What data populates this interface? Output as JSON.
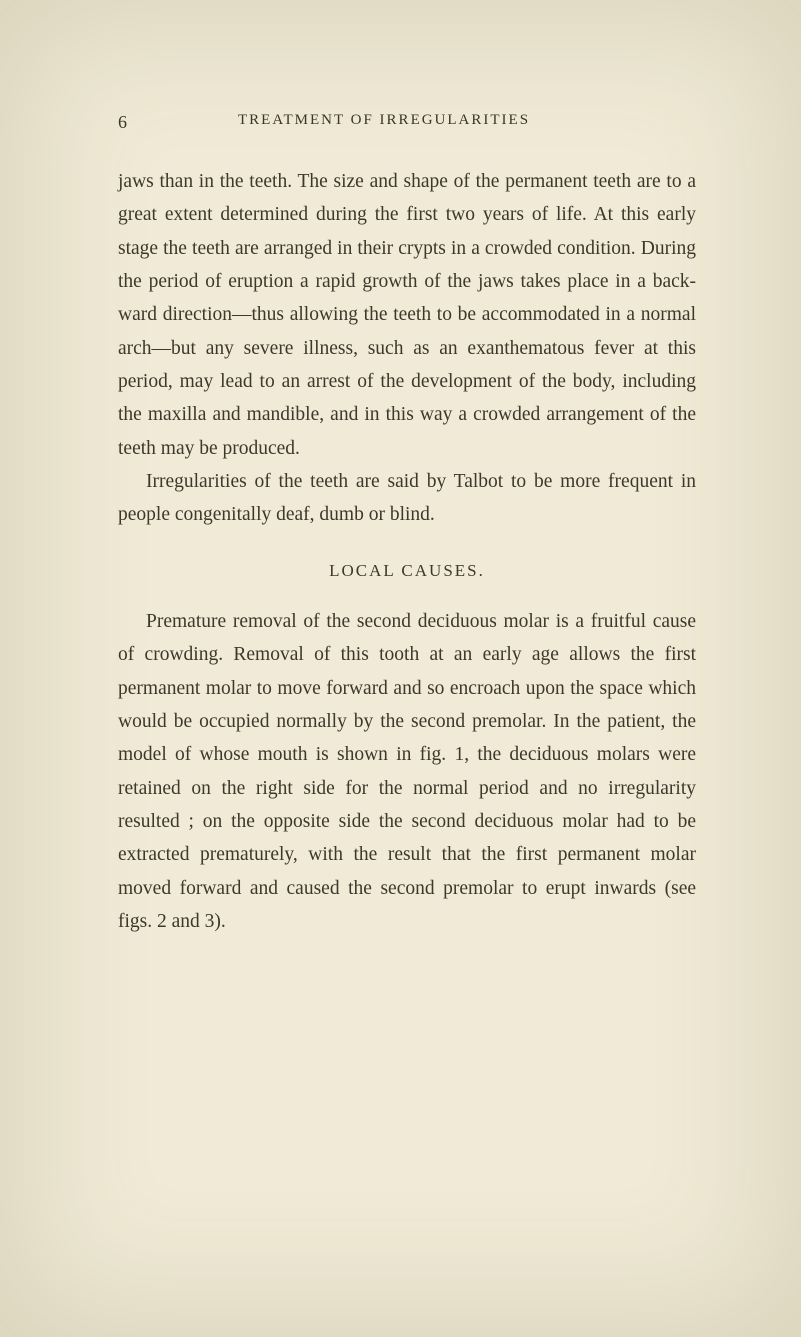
{
  "page": {
    "number": "6",
    "running_title": "TREATMENT OF IRREGULARITIES"
  },
  "paragraphs": {
    "p1": "jaws than in the teeth. The size and shape of the permanent teeth are to a great extent determined during the first two years of life. At this early stage the teeth are arranged in their crypts in a crowded condition. During the period of eruption a rapid growth of the jaws takes place in a back-ward direction—thus allowing the teeth to be accommodated in a normal arch—but any severe illness, such as an exanthematous fever at this period, may lead to an arrest of the development of the body, including the maxilla and mandible, and in this way a crowded arrangement of the teeth may be produced.",
    "p2": "Irregularities of the teeth are said by Talbot to be more frequent in people congenitally deaf, dumb or blind.",
    "section_heading": "LOCAL CAUSES.",
    "p3_lead": "Premature removal of the second deciduous molar",
    "p3_rest": " is a fruitful cause of crowding. Removal of this tooth at an early age allows the first permanent molar to move forward and so encroach upon the space which would be occupied normally by the second premolar. In the patient, the model of whose mouth is shown in fig. 1, the deciduous molars were retained on the right side for the normal period and no irregularity resulted ; on the opposite side the second deciduous molar had to be extracted prematurely, with the result that the first permanent molar moved forward and caused the second premolar to erupt inwards (see figs. 2 and 3)."
  },
  "colors": {
    "background": "#f0ead6",
    "text": "#3a3528"
  }
}
